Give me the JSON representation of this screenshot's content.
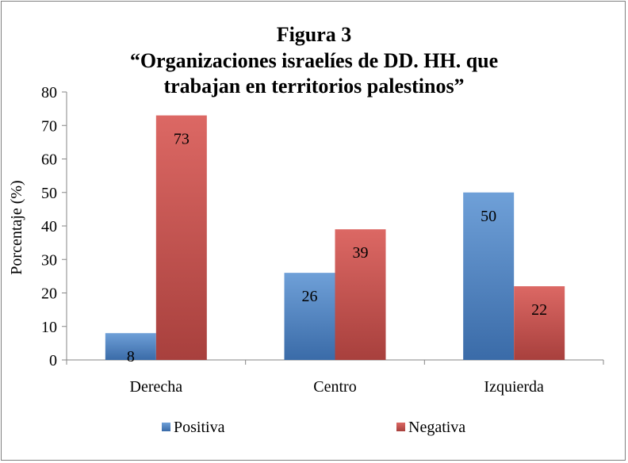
{
  "chart_data": {
    "type": "bar",
    "title_lines": [
      "Figura 3",
      "“Organizaciones israelíes de DD. HH. que",
      "trabajan en territorios palestinos”"
    ],
    "xlabel": "",
    "ylabel": "Porcentaje (%)",
    "ylim": [
      0,
      80
    ],
    "yticks": [
      0,
      10,
      20,
      30,
      40,
      50,
      60,
      70,
      80
    ],
    "categories": [
      "Derecha",
      "Centro",
      "Izquierda"
    ],
    "series": [
      {
        "name": "Positiva",
        "values": [
          8,
          26,
          50
        ],
        "color": "#4a7ebb",
        "light": "#6fa0d8",
        "dark": "#3a6ba8"
      },
      {
        "name": "Negativa",
        "values": [
          73,
          39,
          22
        ],
        "color": "#c0504d",
        "light": "#dc6864",
        "dark": "#a8403d"
      }
    ],
    "legend_position": "bottom",
    "grid": false,
    "data_labels": true
  }
}
